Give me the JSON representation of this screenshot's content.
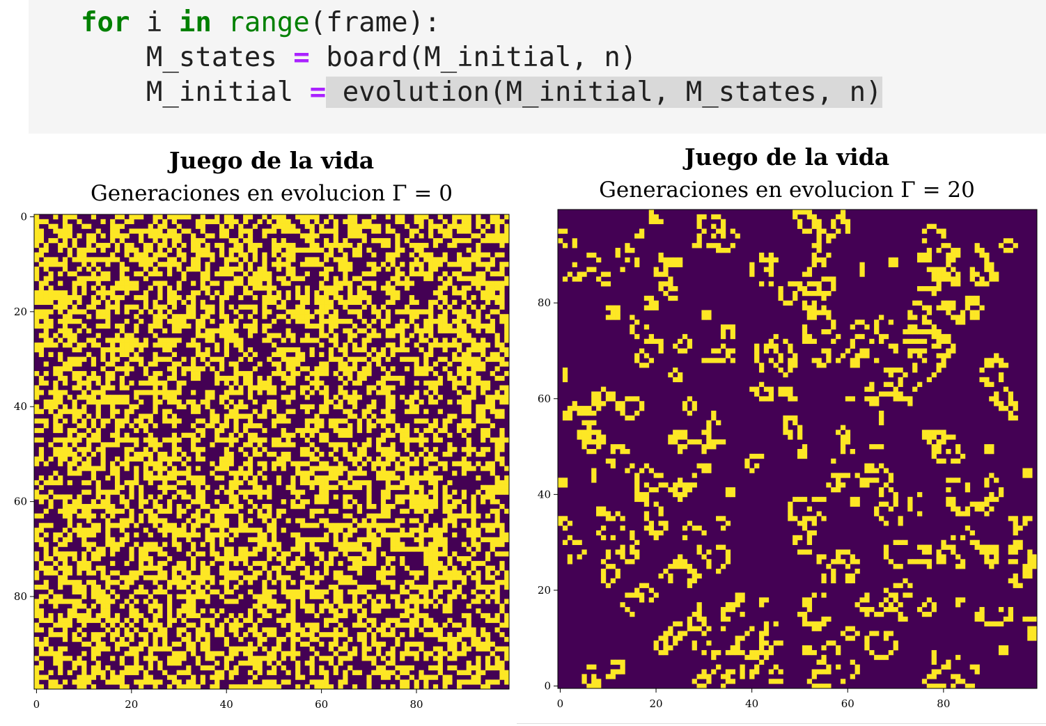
{
  "code": {
    "line1": {
      "k1": "for",
      "t1": " i ",
      "k2": "in",
      "t2": " ",
      "b1": "range",
      "t3": "(frame):"
    },
    "line2": {
      "a": "    M_states ",
      "op": "=",
      "b": " board(M_initial, n)"
    },
    "line3": {
      "a": "    M_initial ",
      "op": "=",
      "hl": " evolution(M_initial, M_states, n)"
    }
  },
  "colors": {
    "dead": "#440154",
    "alive": "#fde725",
    "code_bg": "#f5f5f5",
    "keyword": "#008000",
    "operator": "#aa22ff"
  },
  "chart_data": [
    {
      "type": "heatmap",
      "title": "Juego de la vida",
      "subtitle": "Generaciones en evolucion Γ = 0",
      "grid_size": 100,
      "x_ticks": [
        "0",
        "20",
        "40",
        "60",
        "80"
      ],
      "y_ticks": [
        "0",
        "20",
        "40",
        "60",
        "80"
      ],
      "y_axis": "top-down",
      "colormap": "viridis",
      "pattern": "random",
      "alive_fraction": 0.5,
      "seed": 7
    },
    {
      "type": "heatmap",
      "title": "Juego de la vida",
      "subtitle": "Generaciones en evolucion Γ = 20",
      "grid_size": 100,
      "x_ticks": [
        "0",
        "20",
        "40",
        "60",
        "80"
      ],
      "y_ticks": [
        "0",
        "20",
        "40",
        "60",
        "80"
      ],
      "y_axis": "bottom-up",
      "colormap": "viridis",
      "pattern": "game-of-life",
      "generations": 20,
      "seed": 7
    }
  ]
}
